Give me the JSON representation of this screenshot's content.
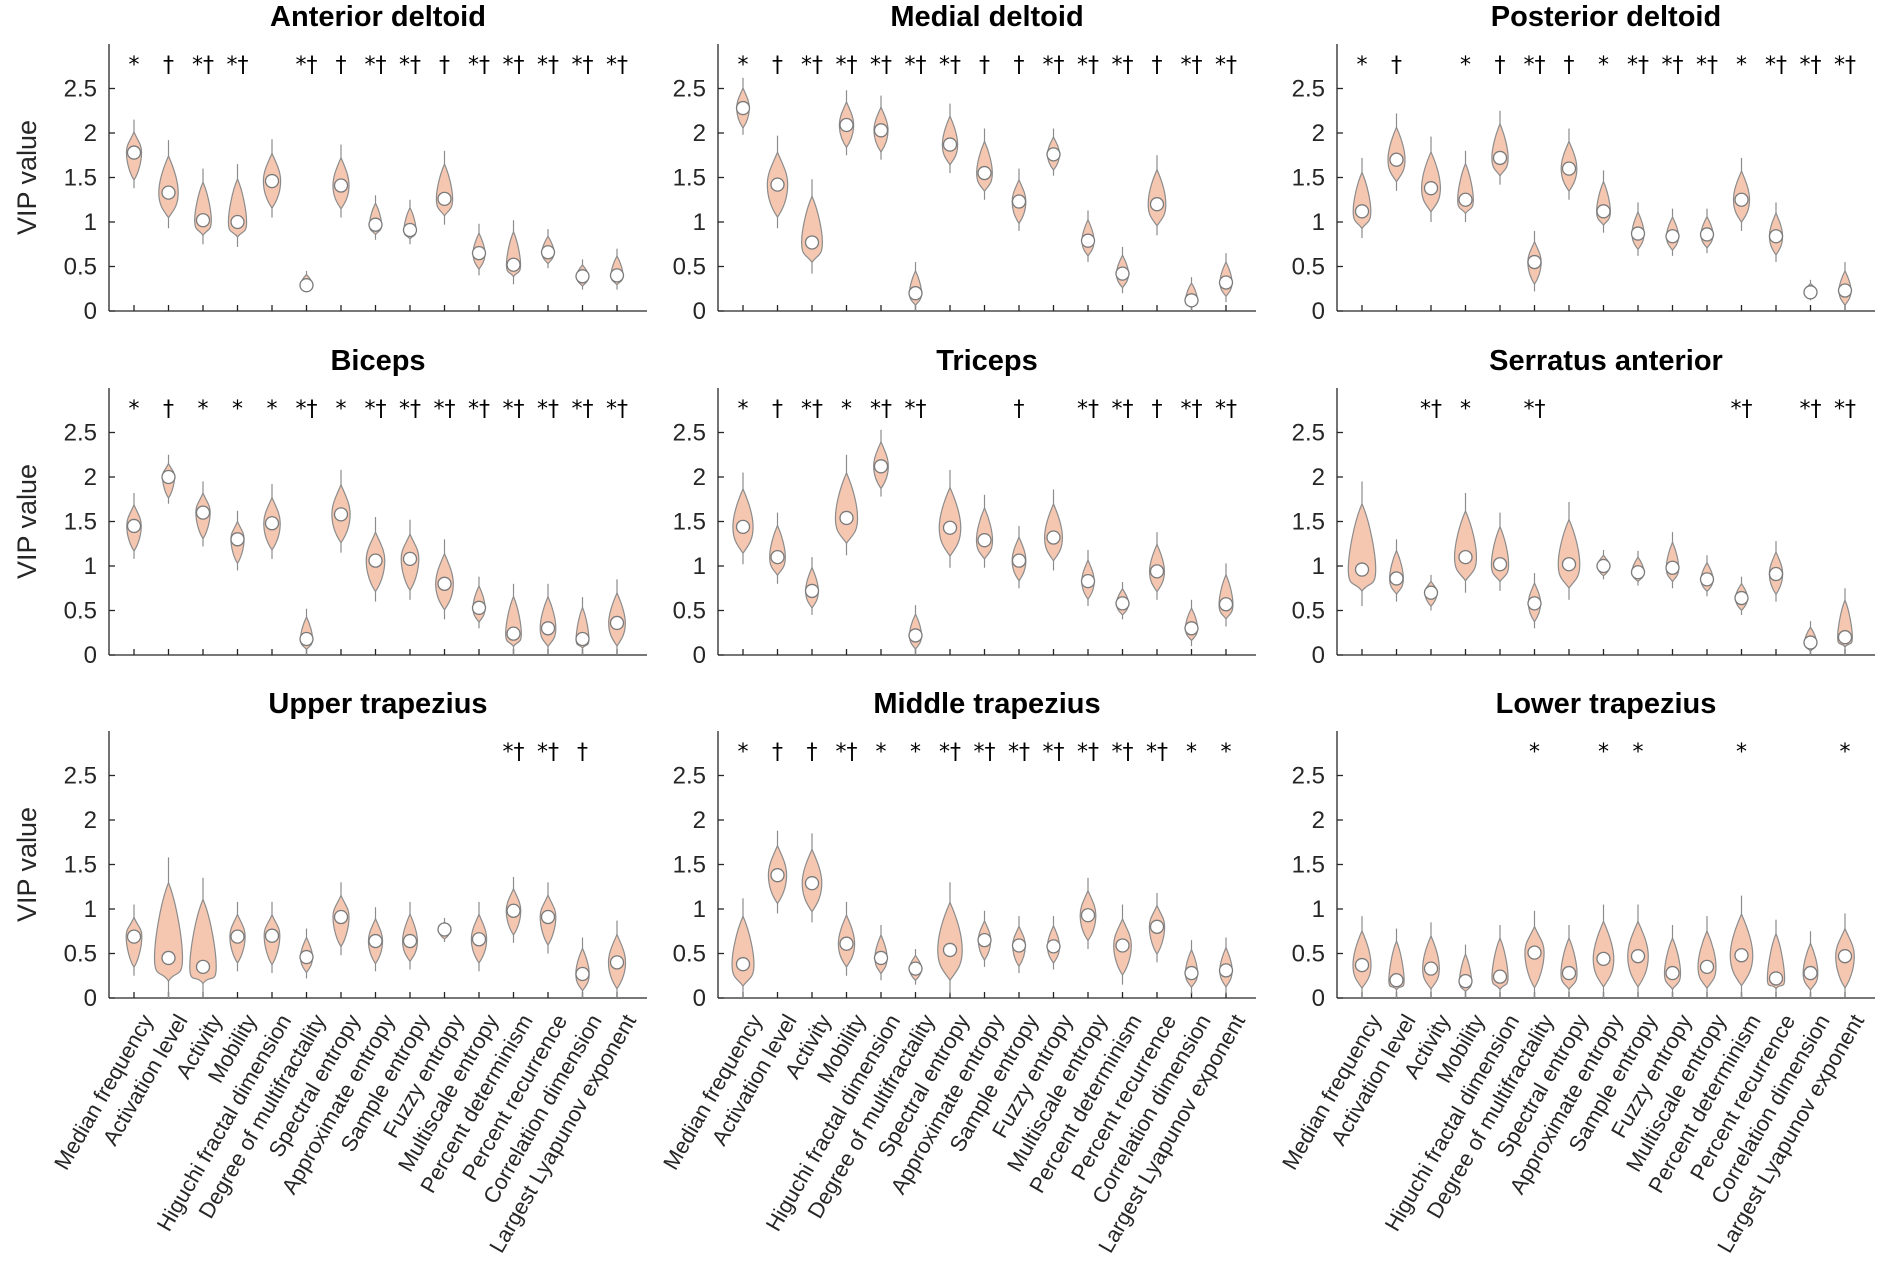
{
  "violin_color": "#f5c6b0",
  "violin_edge_color": "#8c8c8c",
  "median_marker_color": "#ffffff",
  "chart_data": {
    "type": "violin",
    "grid": false,
    "ylim": [
      0,
      3
    ],
    "yticks": [
      0,
      0.5,
      1,
      1.5,
      2,
      2.5
    ],
    "ylabel": "VIP value",
    "categories": [
      "Median frequency",
      "Activation level",
      "Activity",
      "Mobility",
      "Higuchi fractal dimension",
      "Degree of multifractality",
      "Spectral entropy",
      "Approximate entropy",
      "Sample entropy",
      "Fuzzy entropy",
      "Multiscale entropy",
      "Percent determinism",
      "Percent recurrence",
      "Correlation dimension",
      "Largest Lyapunov exponent"
    ],
    "panels": [
      {
        "title": "Anterior deltoid",
        "medians": [
          1.78,
          1.33,
          1.02,
          1.0,
          1.46,
          0.29,
          1.41,
          0.97,
          0.91,
          1.26,
          0.65,
          0.52,
          0.66,
          0.39,
          0.4
        ],
        "ranges": [
          [
            1.38,
            2.15
          ],
          [
            0.93,
            1.92
          ],
          [
            0.75,
            1.6
          ],
          [
            0.72,
            1.65
          ],
          [
            1.05,
            1.93
          ],
          [
            0.22,
            0.45
          ],
          [
            1.05,
            1.87
          ],
          [
            0.8,
            1.3
          ],
          [
            0.75,
            1.25
          ],
          [
            0.97,
            1.8
          ],
          [
            0.4,
            0.98
          ],
          [
            0.3,
            1.02
          ],
          [
            0.48,
            0.92
          ],
          [
            0.24,
            0.58
          ],
          [
            0.24,
            0.7
          ]
        ],
        "markers": [
          "*",
          "†",
          "*†",
          "*†",
          "",
          "*†",
          "†",
          "*†",
          "*†",
          "†",
          "*†",
          "*†",
          "*†",
          "*†",
          "*†"
        ]
      },
      {
        "title": "Medial deltoid",
        "medians": [
          2.28,
          1.42,
          0.77,
          2.09,
          2.03,
          0.2,
          1.87,
          1.55,
          1.23,
          1.76,
          0.79,
          0.42,
          1.2,
          0.12,
          0.32
        ],
        "ranges": [
          [
            1.98,
            2.62
          ],
          [
            0.93,
            1.97
          ],
          [
            0.42,
            1.48
          ],
          [
            1.75,
            2.48
          ],
          [
            1.7,
            2.42
          ],
          [
            0.0,
            0.55
          ],
          [
            1.55,
            2.33
          ],
          [
            1.25,
            2.05
          ],
          [
            0.9,
            1.6
          ],
          [
            1.52,
            2.05
          ],
          [
            0.55,
            1.13
          ],
          [
            0.2,
            0.72
          ],
          [
            0.85,
            1.75
          ],
          [
            0.0,
            0.38
          ],
          [
            0.1,
            0.65
          ]
        ],
        "markers": [
          "*",
          "†",
          "*†",
          "*†",
          "*†",
          "*†",
          "*†",
          "†",
          "†",
          "*†",
          "*†",
          "*†",
          "†",
          "*†",
          "*†"
        ]
      },
      {
        "title": "Posterior deltoid",
        "medians": [
          1.12,
          1.7,
          1.38,
          1.25,
          1.72,
          0.55,
          1.6,
          1.12,
          0.87,
          0.84,
          0.86,
          1.25,
          0.84,
          0.21,
          0.23
        ],
        "ranges": [
          [
            0.82,
            1.72
          ],
          [
            1.35,
            2.22
          ],
          [
            1.0,
            1.96
          ],
          [
            1.0,
            1.8
          ],
          [
            1.42,
            2.25
          ],
          [
            0.22,
            0.9
          ],
          [
            1.25,
            2.05
          ],
          [
            0.88,
            1.58
          ],
          [
            0.62,
            1.22
          ],
          [
            0.62,
            1.15
          ],
          [
            0.65,
            1.15
          ],
          [
            0.9,
            1.72
          ],
          [
            0.55,
            1.22
          ],
          [
            0.12,
            0.35
          ],
          [
            0.0,
            0.55
          ]
        ],
        "markers": [
          "*",
          "†",
          "",
          "*",
          "†",
          "*†",
          "†",
          "*",
          "*†",
          "*†",
          "*†",
          "*",
          "*†",
          "*†",
          "*†"
        ]
      },
      {
        "title": "Biceps",
        "medians": [
          1.45,
          2.0,
          1.6,
          1.3,
          1.48,
          0.18,
          1.58,
          1.06,
          1.08,
          0.8,
          0.53,
          0.24,
          0.3,
          0.18,
          0.36
        ],
        "ranges": [
          [
            1.08,
            1.82
          ],
          [
            1.7,
            2.25
          ],
          [
            1.22,
            1.95
          ],
          [
            0.95,
            1.62
          ],
          [
            1.08,
            1.92
          ],
          [
            0.0,
            0.52
          ],
          [
            1.15,
            2.08
          ],
          [
            0.6,
            1.55
          ],
          [
            0.62,
            1.52
          ],
          [
            0.4,
            1.3
          ],
          [
            0.3,
            0.88
          ],
          [
            0.0,
            0.8
          ],
          [
            0.0,
            0.8
          ],
          [
            0.0,
            0.65
          ],
          [
            0.0,
            0.85
          ]
        ],
        "markers": [
          "*",
          "†",
          "*",
          "*",
          "*",
          "*†",
          "*",
          "*†",
          "*†",
          "*†",
          "*†",
          "*†",
          "*†",
          "*†",
          "*†"
        ]
      },
      {
        "title": "Triceps",
        "medians": [
          1.44,
          1.1,
          0.72,
          1.54,
          2.12,
          0.22,
          1.43,
          1.29,
          1.06,
          1.32,
          0.83,
          0.58,
          0.94,
          0.3,
          0.57
        ],
        "ranges": [
          [
            1.02,
            2.05
          ],
          [
            0.8,
            1.6
          ],
          [
            0.45,
            1.1
          ],
          [
            1.12,
            2.25
          ],
          [
            1.78,
            2.53
          ],
          [
            0.0,
            0.56
          ],
          [
            0.98,
            2.08
          ],
          [
            0.98,
            1.8
          ],
          [
            0.75,
            1.45
          ],
          [
            0.95,
            1.86
          ],
          [
            0.55,
            1.18
          ],
          [
            0.4,
            0.82
          ],
          [
            0.62,
            1.38
          ],
          [
            0.1,
            0.62
          ],
          [
            0.32,
            1.03
          ]
        ],
        "markers": [
          "*",
          "†",
          "*†",
          "*",
          "*†",
          "*†",
          "",
          "",
          "†",
          "",
          "*†",
          "*†",
          "†",
          "*†",
          "*†"
        ]
      },
      {
        "title": "Serratus anterior",
        "medians": [
          0.96,
          0.86,
          0.7,
          1.1,
          1.02,
          0.58,
          1.02,
          1.0,
          0.93,
          0.98,
          0.85,
          0.64,
          0.91,
          0.14,
          0.2
        ],
        "ranges": [
          [
            0.55,
            1.95
          ],
          [
            0.6,
            1.3
          ],
          [
            0.5,
            0.9
          ],
          [
            0.7,
            1.82
          ],
          [
            0.72,
            1.6
          ],
          [
            0.3,
            0.92
          ],
          [
            0.62,
            1.72
          ],
          [
            0.85,
            1.18
          ],
          [
            0.78,
            1.17
          ],
          [
            0.75,
            1.38
          ],
          [
            0.66,
            1.12
          ],
          [
            0.45,
            0.88
          ],
          [
            0.6,
            1.28
          ],
          [
            0.0,
            0.38
          ],
          [
            0.0,
            0.75
          ]
        ],
        "markers": [
          "",
          "",
          "*†",
          "*",
          "",
          "*†",
          "",
          "",
          "",
          "",
          "",
          "*†",
          "",
          "*†",
          "*†"
        ]
      },
      {
        "title": "Upper trapezius",
        "medians": [
          0.69,
          0.45,
          0.35,
          0.69,
          0.7,
          0.46,
          0.91,
          0.64,
          0.64,
          0.77,
          0.66,
          0.98,
          0.91,
          0.27,
          0.4
        ],
        "ranges": [
          [
            0.25,
            1.05
          ],
          [
            0.0,
            1.58
          ],
          [
            0.0,
            1.35
          ],
          [
            0.3,
            1.08
          ],
          [
            0.28,
            1.08
          ],
          [
            0.22,
            0.78
          ],
          [
            0.48,
            1.3
          ],
          [
            0.3,
            1.02
          ],
          [
            0.32,
            1.08
          ],
          [
            0.63,
            0.9
          ],
          [
            0.3,
            1.08
          ],
          [
            0.62,
            1.36
          ],
          [
            0.5,
            1.3
          ],
          [
            0.0,
            0.68
          ],
          [
            0.0,
            0.87
          ]
        ],
        "markers": [
          "",
          "",
          "",
          "",
          "",
          "",
          "",
          "",
          "",
          "",
          "",
          "*†",
          "*†",
          "†",
          ""
        ]
      },
      {
        "title": "Middle trapezius",
        "medians": [
          0.38,
          1.38,
          1.29,
          0.61,
          0.45,
          0.33,
          0.54,
          0.65,
          0.59,
          0.58,
          0.93,
          0.59,
          0.8,
          0.28,
          0.31
        ],
        "ranges": [
          [
            0.0,
            1.12
          ],
          [
            0.95,
            1.88
          ],
          [
            0.85,
            1.85
          ],
          [
            0.25,
            1.08
          ],
          [
            0.2,
            0.82
          ],
          [
            0.15,
            0.55
          ],
          [
            0.05,
            1.3
          ],
          [
            0.35,
            0.98
          ],
          [
            0.28,
            0.92
          ],
          [
            0.32,
            0.92
          ],
          [
            0.55,
            1.35
          ],
          [
            0.15,
            1.05
          ],
          [
            0.4,
            1.18
          ],
          [
            0.05,
            0.65
          ],
          [
            0.05,
            0.68
          ]
        ],
        "markers": [
          "*",
          "†",
          "†",
          "*†",
          "*",
          "*",
          "*†",
          "*†",
          "*†",
          "*†",
          "*†",
          "*†",
          "*†",
          "*",
          "*"
        ]
      },
      {
        "title": "Lower trapezius",
        "medians": [
          0.37,
          0.2,
          0.33,
          0.19,
          0.24,
          0.51,
          0.28,
          0.44,
          0.47,
          0.28,
          0.35,
          0.48,
          0.22,
          0.28,
          0.47
        ],
        "ranges": [
          [
            0.0,
            0.92
          ],
          [
            0.0,
            0.78
          ],
          [
            0.0,
            0.85
          ],
          [
            0.0,
            0.6
          ],
          [
            0.0,
            0.82
          ],
          [
            0.0,
            0.98
          ],
          [
            0.0,
            0.82
          ],
          [
            0.0,
            1.05
          ],
          [
            0.0,
            1.05
          ],
          [
            0.0,
            0.82
          ],
          [
            0.0,
            0.92
          ],
          [
            0.0,
            1.15
          ],
          [
            0.0,
            0.88
          ],
          [
            0.0,
            0.75
          ],
          [
            0.0,
            0.95
          ]
        ],
        "markers": [
          "",
          "",
          "",
          "",
          "",
          "*",
          "",
          "*",
          "*",
          "",
          "",
          "*",
          "",
          "",
          "*"
        ]
      }
    ]
  }
}
